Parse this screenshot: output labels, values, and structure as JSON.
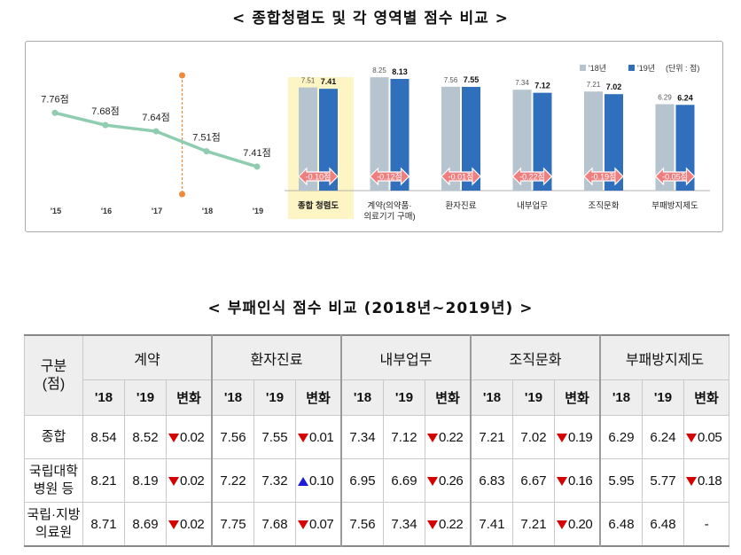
{
  "titles": {
    "top": "< 종합청렴도 및 각 영역별 점수 비교 >",
    "bottom": "< 부패인식 점수 비교 (2018년~2019년) >"
  },
  "chart_data": [
    {
      "type": "line",
      "x": [
        "'15",
        "'16",
        "'17",
        "'18",
        "'19"
      ],
      "values": [
        7.76,
        7.68,
        7.64,
        7.51,
        7.41
      ],
      "point_labels": [
        "7.76점",
        "7.68점",
        "7.64점",
        "7.51점",
        "7.41점"
      ],
      "colors": {
        "line": "#8fcdb0",
        "marker": "#8fcdb0",
        "divider": "#f08a3c"
      }
    },
    {
      "type": "bar",
      "categories": [
        "종합 청렴도",
        "계약(의약품·\n의료기기 구매)",
        "환자진료",
        "내부업무",
        "조직문화",
        "부패방지제도"
      ],
      "highlight_category": 0,
      "series": [
        {
          "name": "'18년",
          "values": [
            7.51,
            8.25,
            7.56,
            7.34,
            7.21,
            6.29
          ],
          "color": "#b6c4d0"
        },
        {
          "name": "'19년",
          "values": [
            7.41,
            8.13,
            7.55,
            7.12,
            7.02,
            6.24
          ],
          "color": "#2f6fbc"
        }
      ],
      "value_labels_18": [
        "7.51",
        "8.25",
        "7.56",
        "7.34",
        "7.21",
        "6.29"
      ],
      "value_labels_19": [
        "7.41",
        "8.13",
        "7.55",
        "7.12",
        "7.02",
        "6.24"
      ],
      "change_labels": [
        "-0.10점",
        "-0.12점",
        "-0.01점",
        "-0.22점",
        "-0.19점",
        "-0.05점"
      ],
      "unit_label": "(단위 : 점)",
      "highlight_color": "#fdf6c4",
      "arrow_color": "#ef7e7e"
    }
  ],
  "table": {
    "header_category": "구분\n(점)",
    "groups": [
      "계약",
      "환자진료",
      "내부업무",
      "조직문화",
      "부패방지제도"
    ],
    "sub_headers": [
      "'18",
      "'19",
      "변화"
    ],
    "rows": [
      {
        "label": "종합",
        "cells": [
          [
            "8.54",
            "8.52",
            "down",
            "0.02"
          ],
          [
            "7.56",
            "7.55",
            "down",
            "0.01"
          ],
          [
            "7.34",
            "7.12",
            "down",
            "0.22"
          ],
          [
            "7.21",
            "7.02",
            "down",
            "0.19"
          ],
          [
            "6.29",
            "6.24",
            "down",
            "0.05"
          ]
        ]
      },
      {
        "label": "국립대학\n병원 등",
        "cells": [
          [
            "8.21",
            "8.19",
            "down",
            "0.02"
          ],
          [
            "7.22",
            "7.32",
            "up",
            "0.10"
          ],
          [
            "6.95",
            "6.69",
            "down",
            "0.26"
          ],
          [
            "6.83",
            "6.67",
            "down",
            "0.16"
          ],
          [
            "5.95",
            "5.77",
            "down",
            "0.18"
          ]
        ]
      },
      {
        "label": "국립·지방\n의료원",
        "cells": [
          [
            "8.71",
            "8.69",
            "down",
            "0.02"
          ],
          [
            "7.75",
            "7.68",
            "down",
            "0.07"
          ],
          [
            "7.56",
            "7.34",
            "down",
            "0.22"
          ],
          [
            "7.41",
            "7.21",
            "down",
            "0.20"
          ],
          [
            "6.48",
            "6.48",
            "none",
            "-"
          ]
        ]
      }
    ]
  }
}
